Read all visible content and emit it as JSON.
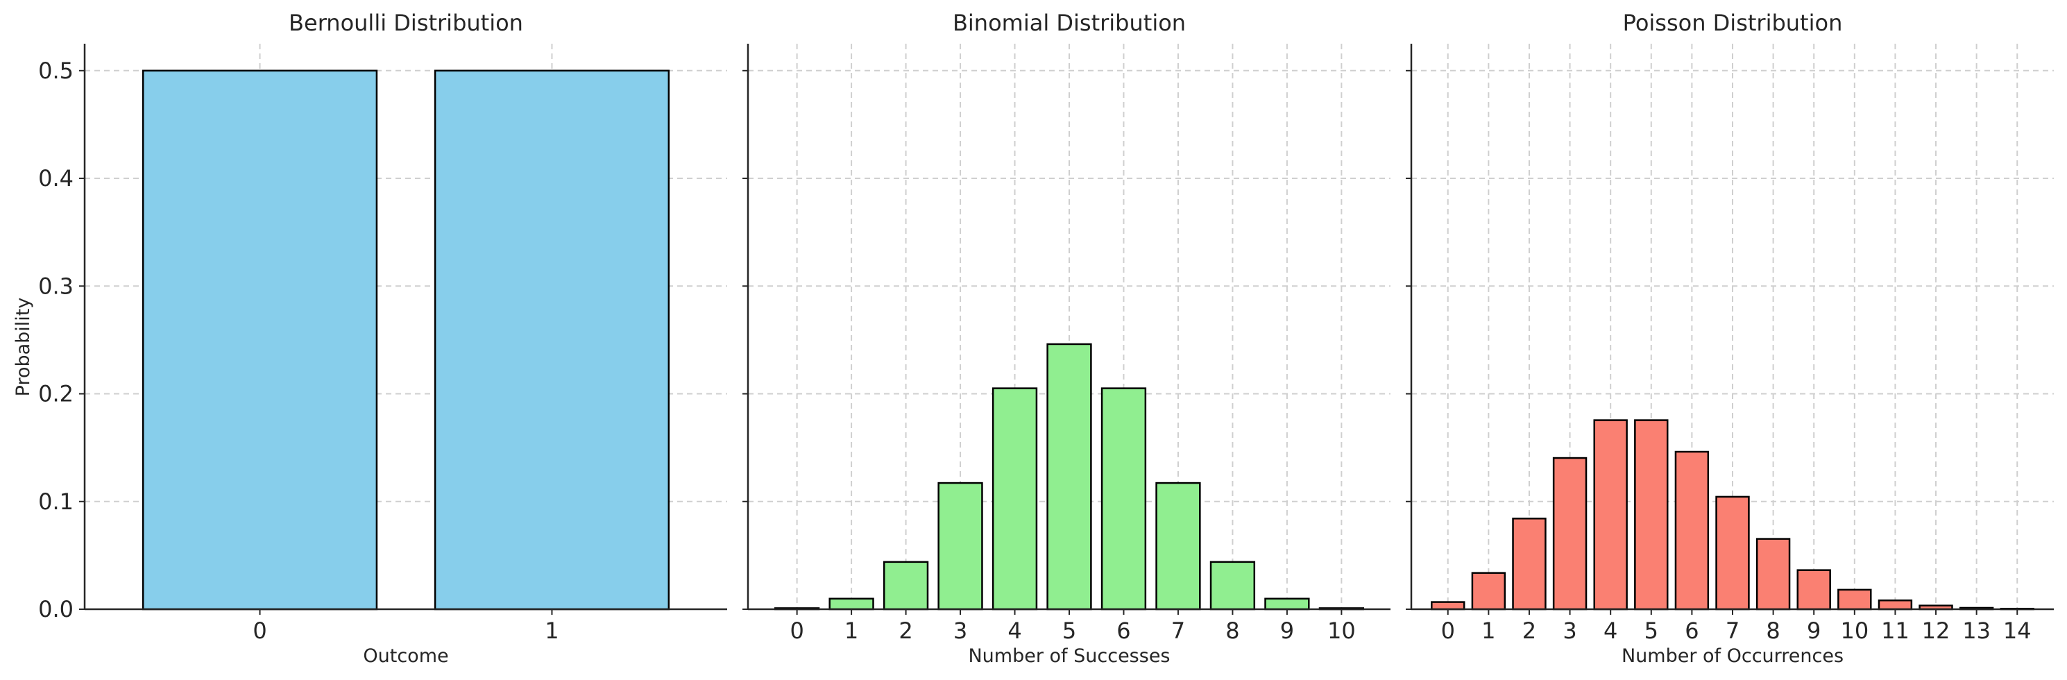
{
  "figure": {
    "ylabel": "Probability",
    "y_ticks": [
      0.0,
      0.1,
      0.2,
      0.3,
      0.4,
      0.5
    ],
    "y_tick_labels": [
      "0.0",
      "0.1",
      "0.2",
      "0.3",
      "0.4",
      "0.5"
    ],
    "ylim": [
      0,
      0.525
    ],
    "grid": true,
    "edge_color": "#000000"
  },
  "chart_data": [
    {
      "type": "bar",
      "title": "Bernoulli Distribution",
      "xlabel": "Outcome",
      "ylabel": "Probability",
      "categories": [
        "0",
        "1"
      ],
      "values": [
        0.5,
        0.5
      ],
      "color": "#87CEEB",
      "ylim": [
        0,
        0.525
      ]
    },
    {
      "type": "bar",
      "title": "Binomial Distribution",
      "xlabel": "Number of Successes",
      "ylabel": "",
      "categories": [
        "0",
        "1",
        "2",
        "3",
        "4",
        "5",
        "6",
        "7",
        "8",
        "9",
        "10"
      ],
      "values": [
        0.001,
        0.0098,
        0.0439,
        0.1172,
        0.2051,
        0.2461,
        0.2051,
        0.1172,
        0.0439,
        0.0098,
        0.001
      ],
      "color": "#90EE90",
      "ylim": [
        0,
        0.525
      ]
    },
    {
      "type": "bar",
      "title": "Poisson Distribution",
      "xlabel": "Number of Occurrences",
      "ylabel": "",
      "categories": [
        "0",
        "1",
        "2",
        "3",
        "4",
        "5",
        "6",
        "7",
        "8",
        "9",
        "10",
        "11",
        "12",
        "13",
        "14"
      ],
      "values": [
        0.0067,
        0.0337,
        0.0842,
        0.1404,
        0.1755,
        0.1755,
        0.1462,
        0.1044,
        0.0653,
        0.0363,
        0.0181,
        0.0082,
        0.0034,
        0.0013,
        0.0005
      ],
      "color": "#FA8072",
      "ylim": [
        0,
        0.525
      ]
    }
  ]
}
